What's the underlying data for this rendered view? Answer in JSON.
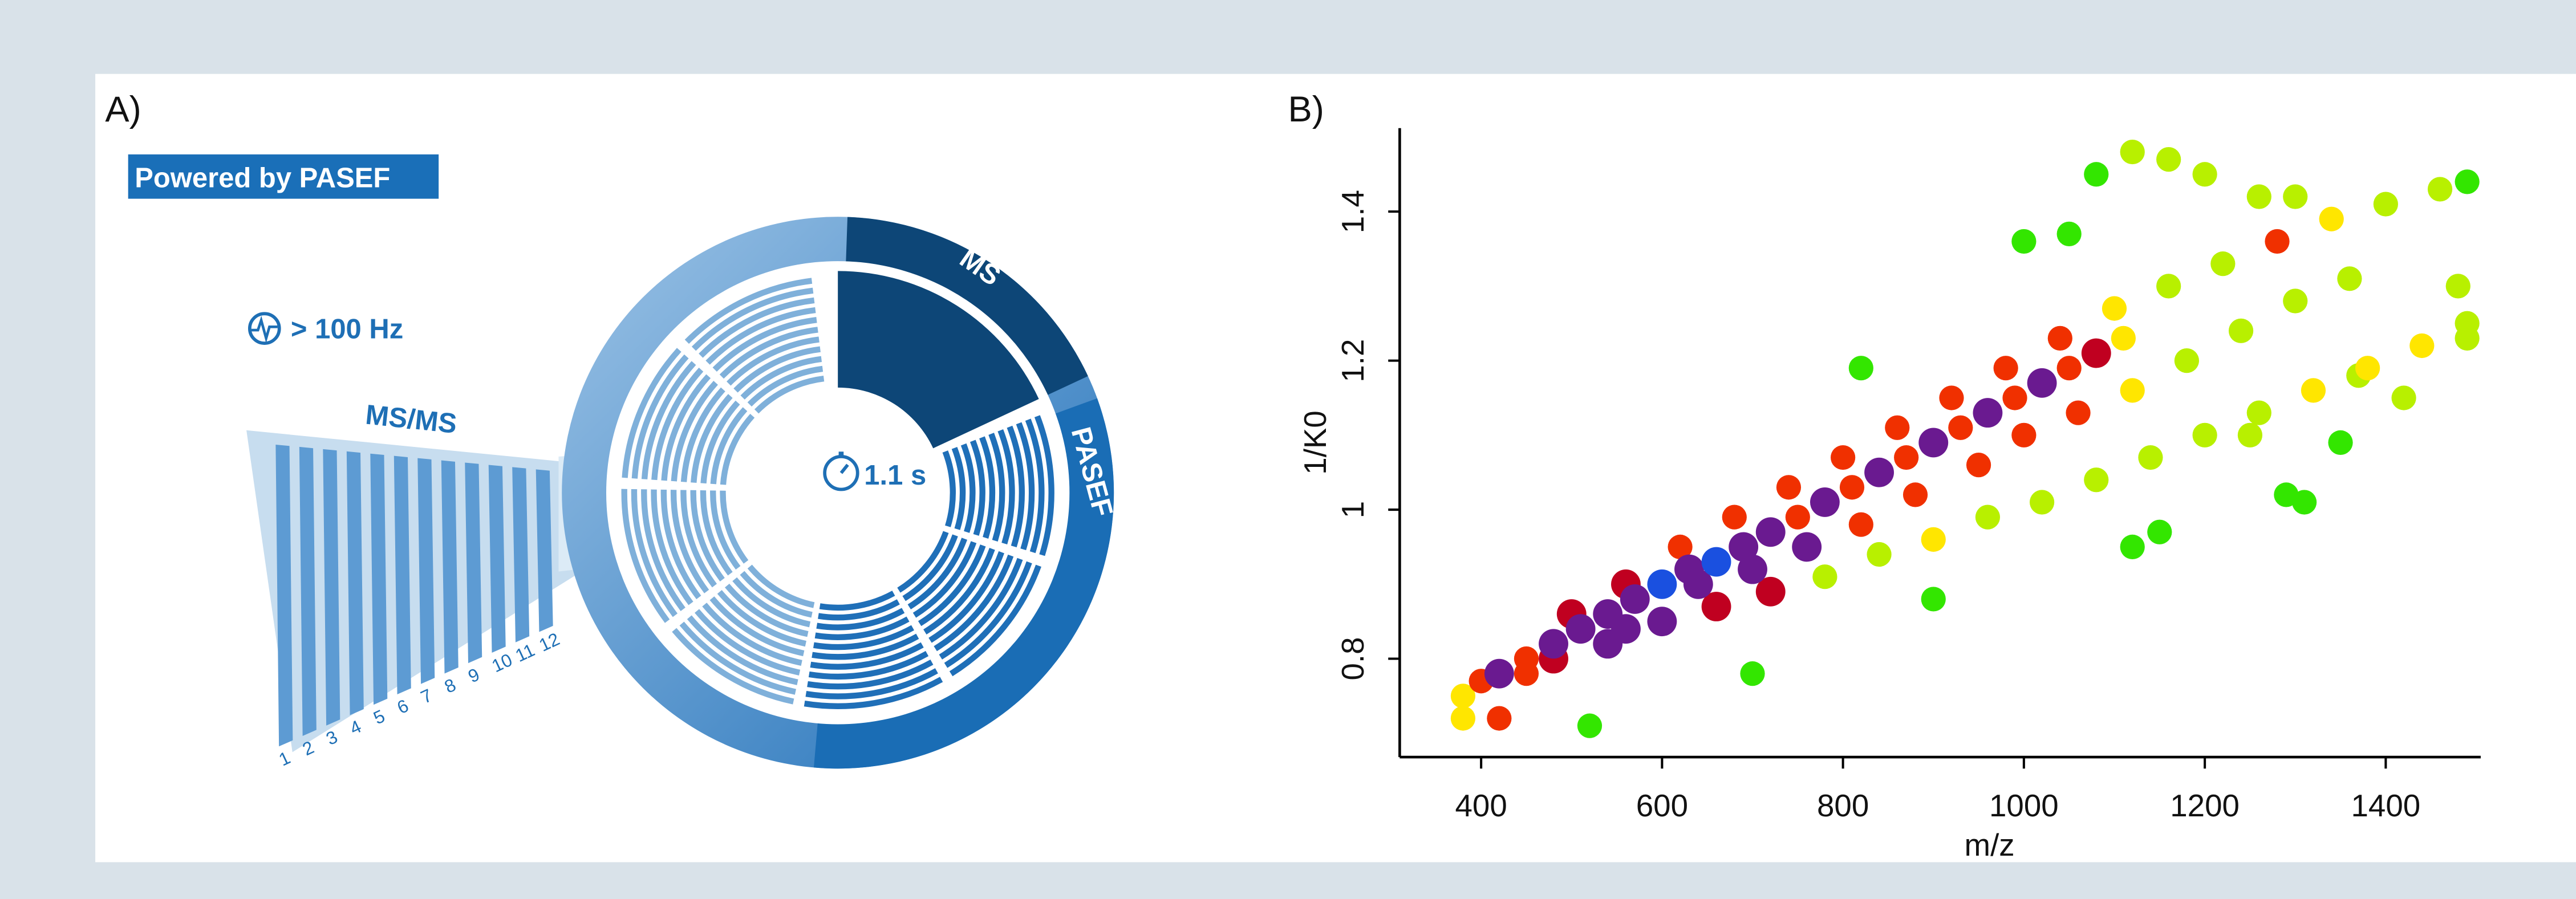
{
  "panel_a": {
    "label": "A)",
    "badge": "Powered by PASEF",
    "rate": "> 100 Hz",
    "msms": "MS/MS",
    "ms": "MS",
    "pasef": "PASEF",
    "cycle": "1.1 s",
    "scan_numbers": [
      "1",
      "2",
      "3",
      "4",
      "5",
      "6",
      "7",
      "8",
      "9",
      "10",
      "11",
      "12"
    ]
  },
  "chart_data": {
    "type": "scatter",
    "panel_label": "B)",
    "x_label": "m/z",
    "y_label": "1/K0",
    "x": [
      380,
      400,
      420,
      450,
      480,
      510,
      540,
      570,
      600,
      630,
      660,
      690,
      720,
      750,
      780,
      810,
      840,
      870,
      900,
      930,
      960,
      990,
      1020,
      1050,
      1080,
      1110,
      500,
      560,
      620,
      680,
      740,
      800,
      860,
      920,
      980,
      1040,
      1100,
      1160,
      1220,
      1280,
      1340,
      1400,
      1460,
      1490,
      480,
      540,
      600,
      660,
      720,
      780,
      840,
      900,
      960,
      1020,
      1080,
      1140,
      1200,
      1260,
      1320,
      1380,
      1440,
      1490,
      450,
      560,
      640,
      700,
      760,
      820,
      880,
      950,
      1000,
      1060,
      1120,
      1180,
      1240,
      1300,
      1360,
      380,
      420,
      520,
      700,
      900,
      1120,
      1150,
      1290,
      1310,
      1350,
      1420,
      1490,
      1480,
      1050,
      1000,
      1120,
      1160,
      1200,
      1260,
      1300,
      1080,
      1250,
      820,
      1370
    ],
    "values": [
      0.75,
      0.77,
      0.78,
      0.8,
      0.82,
      0.84,
      0.86,
      0.88,
      0.9,
      0.92,
      0.93,
      0.95,
      0.97,
      0.99,
      1.01,
      1.03,
      1.05,
      1.07,
      1.09,
      1.11,
      1.13,
      1.15,
      1.17,
      1.19,
      1.21,
      1.23,
      0.86,
      0.9,
      0.95,
      0.99,
      1.03,
      1.07,
      1.11,
      1.15,
      1.19,
      1.23,
      1.27,
      1.3,
      1.33,
      1.36,
      1.39,
      1.41,
      1.43,
      1.44,
      0.8,
      0.82,
      0.85,
      0.87,
      0.89,
      0.91,
      0.94,
      0.96,
      0.99,
      1.01,
      1.04,
      1.07,
      1.1,
      1.13,
      1.16,
      1.19,
      1.22,
      1.25,
      0.78,
      0.84,
      0.9,
      0.92,
      0.95,
      0.98,
      1.02,
      1.06,
      1.1,
      1.13,
      1.16,
      1.2,
      1.24,
      1.28,
      1.31,
      0.72,
      0.72,
      0.71,
      0.78,
      0.88,
      0.95,
      0.97,
      1.02,
      1.01,
      1.09,
      1.15,
      1.23,
      1.3,
      1.37,
      1.36,
      1.48,
      1.47,
      1.45,
      1.42,
      1.42,
      1.45,
      1.1,
      1.19,
      1.18
    ],
    "xlim": [
      310,
      1505
    ],
    "ylim": [
      0.668,
      1.512
    ],
    "xticks": [
      400,
      600,
      800,
      1000,
      1200,
      1400
    ],
    "yticks": [
      0.8,
      1,
      1.2,
      1.4
    ],
    "colormap": [
      "#33e600",
      "#b8f000",
      "#ffe600",
      "#f03000",
      "#c00020",
      "#6a1a90",
      "#1a50e0"
    ]
  }
}
